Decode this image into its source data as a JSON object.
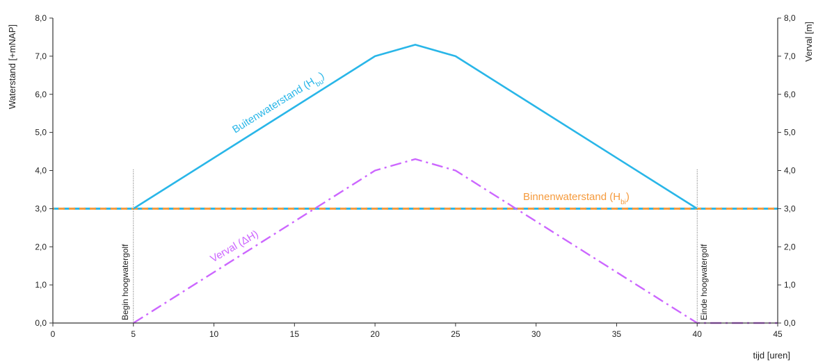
{
  "chart_data": {
    "type": "line",
    "xlabel": "tijd [uren]",
    "ylabel_left": "Waterstand [+mNAP]",
    "ylabel_right": "Verval [m]",
    "xlim": [
      0,
      45
    ],
    "ylim": [
      0,
      8
    ],
    "x_ticks": [
      0,
      5,
      10,
      15,
      20,
      25,
      30,
      35,
      40,
      45
    ],
    "x_tick_labels": [
      "0",
      "5",
      "10",
      "15",
      "20",
      "25",
      "30",
      "35",
      "40",
      "45"
    ],
    "y_ticks": [
      0,
      1,
      2,
      3,
      4,
      5,
      6,
      7,
      8
    ],
    "y_tick_labels": [
      "0,0",
      "1,0",
      "2,0",
      "3,0",
      "4,0",
      "5,0",
      "6,0",
      "7,0",
      "8,0"
    ],
    "grid": false,
    "series": [
      {
        "key": "buiten",
        "name": "Buitenwaterstand (H",
        "name_sub": "bu",
        "name_close": ")",
        "color": "#29b6e8",
        "style": "solid",
        "points": [
          [
            5,
            3.0
          ],
          [
            20,
            7.0
          ],
          [
            22.5,
            7.3
          ],
          [
            25,
            7.0
          ],
          [
            40,
            3.0
          ]
        ]
      },
      {
        "key": "buiten_dashed",
        "color": "#29b6e8",
        "style": "dashed",
        "points": [
          [
            0,
            3.0
          ],
          [
            5,
            3.0
          ],
          [
            40,
            3.0
          ],
          [
            45,
            3.0
          ]
        ]
      },
      {
        "key": "binnen",
        "name": "Binnenwaterstand (H",
        "name_sub": "bi",
        "name_close": ")",
        "color": "#f59a3c",
        "style": "dashed",
        "points": [
          [
            0,
            3.0
          ],
          [
            45,
            3.0
          ]
        ]
      },
      {
        "key": "verval",
        "name": "Verval (ΔH)",
        "color": "#cc66ff",
        "style": "dashdot",
        "points": [
          [
            5,
            0.0
          ],
          [
            20,
            4.0
          ],
          [
            22.5,
            4.3
          ],
          [
            25,
            4.0
          ],
          [
            40,
            0.0
          ],
          [
            45,
            0.0
          ]
        ]
      }
    ],
    "markers": [
      {
        "x": 5,
        "label": "Begin hoogwatergolf"
      },
      {
        "x": 40,
        "label": "Einde hoogwatergolf"
      }
    ]
  }
}
